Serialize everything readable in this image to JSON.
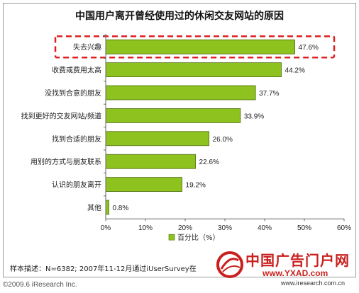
{
  "chart_data": {
    "type": "bar",
    "orientation": "horizontal",
    "title": "中国用户离开曾经使用过的休闲交友网站的原因",
    "categories": [
      "失去兴趣",
      "收费或费用太高",
      "没找到合意的朋友",
      "找到更好的交友网站/频道",
      "找到合适的朋友",
      "用别的方式与朋友联系",
      "认识的朋友离开",
      "其他"
    ],
    "values": [
      47.6,
      44.2,
      37.7,
      33.9,
      26.0,
      22.6,
      19.2,
      0.8
    ],
    "value_labels": [
      "47.6%",
      "44.2%",
      "37.7%",
      "33.9%",
      "26.0%",
      "22.6%",
      "19.2%",
      "0.8%"
    ],
    "xlim": [
      0,
      60
    ],
    "xticks": [
      "0%",
      "10%",
      "20%",
      "30%",
      "40%",
      "50%",
      "60%"
    ],
    "grid": false,
    "legend": {
      "position": "bottom",
      "label": "百分比（%）"
    },
    "bar_color": "#8dc21f",
    "bar_border": "#4d6b12",
    "highlight": {
      "category": "失去兴趣",
      "color": "#e02020",
      "style": "dashed"
    }
  },
  "footer": {
    "sample_note": "样本描述：N=6382; 2007年11-12月通过iUserSurvey在",
    "copyright": "©2009.6 iResearch Inc."
  },
  "watermark": {
    "title": "中国广告门户网",
    "site": "www.YXAD.com",
    "url": "www.iresearch.com.cn"
  }
}
